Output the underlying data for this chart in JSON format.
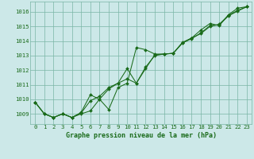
{
  "xlabel": "Graphe pression niveau de la mer (hPa)",
  "x_ticks": [
    0,
    1,
    2,
    3,
    4,
    5,
    6,
    7,
    8,
    9,
    10,
    11,
    12,
    13,
    14,
    15,
    16,
    17,
    18,
    19,
    20,
    21,
    22,
    23
  ],
  "y_ticks": [
    1009,
    1010,
    1011,
    1012,
    1013,
    1014,
    1015,
    1016
  ],
  "ylim": [
    1008.3,
    1016.7
  ],
  "xlim": [
    -0.5,
    23.5
  ],
  "line1_x": [
    0,
    1,
    2,
    3,
    4,
    5,
    6,
    7,
    8,
    9,
    10,
    11,
    12,
    13,
    14,
    15,
    16,
    17,
    18,
    19,
    20,
    21,
    22,
    23
  ],
  "line1_y": [
    1009.8,
    1009.0,
    1008.75,
    1009.0,
    1008.75,
    1009.0,
    1009.2,
    1010.0,
    1009.3,
    1010.8,
    1011.1,
    1013.55,
    1013.4,
    1013.1,
    1013.1,
    1013.15,
    1013.9,
    1014.2,
    1014.75,
    1015.2,
    1015.05,
    1015.8,
    1016.25,
    1016.35
  ],
  "line2_x": [
    0,
    1,
    2,
    3,
    4,
    5,
    6,
    7,
    8,
    9,
    10,
    11,
    12,
    13,
    14,
    15,
    16,
    17,
    18,
    19,
    20,
    21,
    22,
    23
  ],
  "line2_y": [
    1009.8,
    1009.0,
    1008.75,
    1009.0,
    1008.75,
    1009.1,
    1010.3,
    1010.0,
    1010.7,
    1011.1,
    1012.1,
    1011.1,
    1012.2,
    1013.0,
    1013.1,
    1013.15,
    1013.85,
    1014.2,
    1014.5,
    1015.0,
    1015.15,
    1015.75,
    1016.1,
    1016.35
  ],
  "line3_x": [
    0,
    1,
    2,
    3,
    4,
    5,
    6,
    7,
    8,
    9,
    10,
    11,
    12,
    13,
    14,
    15,
    16,
    17,
    18,
    19,
    20,
    21,
    22,
    23
  ],
  "line3_y": [
    1009.8,
    1009.0,
    1008.75,
    1009.0,
    1008.75,
    1009.05,
    1009.9,
    1010.2,
    1010.8,
    1011.1,
    1011.4,
    1011.1,
    1012.1,
    1013.05,
    1013.1,
    1013.15,
    1013.87,
    1014.15,
    1014.55,
    1015.05,
    1015.1,
    1015.72,
    1016.05,
    1016.35
  ],
  "line_color": "#1a6b1a",
  "marker": "D",
  "marker_size": 2.0,
  "bg_color": "#cce8e8",
  "grid_color": "#7ab5a5",
  "tick_fontsize": 5.2,
  "label_fontsize": 6.0,
  "label_color": "#1a6b1a",
  "tick_color": "#1a6b1a"
}
